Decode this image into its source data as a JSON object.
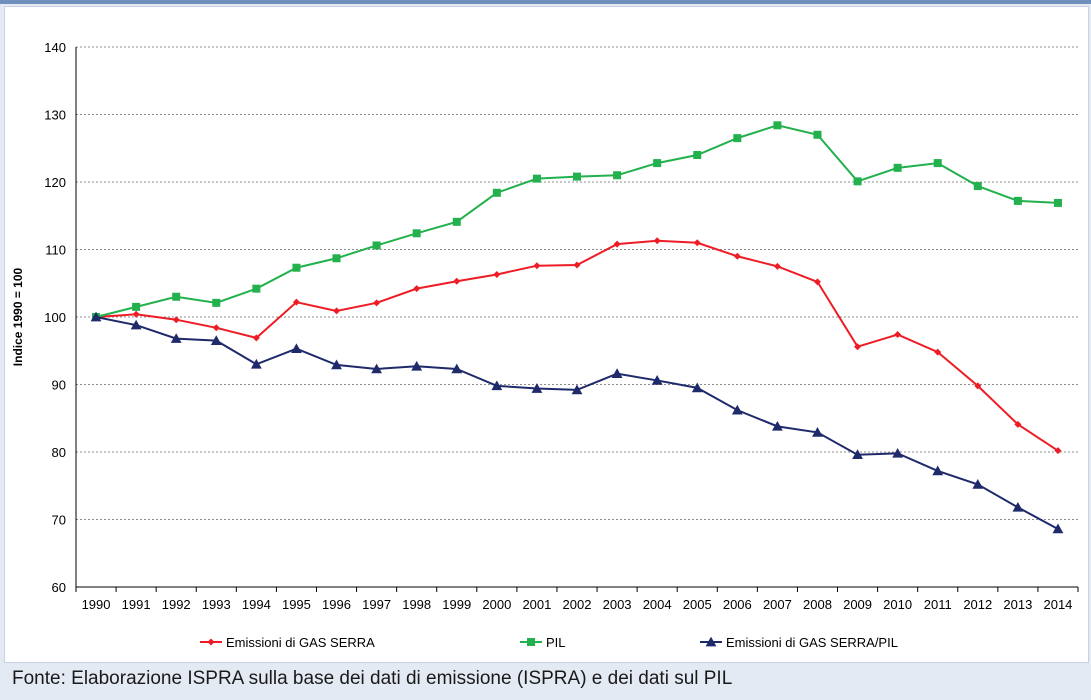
{
  "source_note": "Fonte: Elaborazione ISPRA sulla base dei dati di emissione (ISPRA) e dei dati sul PIL",
  "chart_data": {
    "type": "line",
    "title": "",
    "xlabel": "",
    "ylabel": "Indice 1990 = 100",
    "ylim": [
      60,
      140
    ],
    "yticks": [
      60,
      70,
      80,
      90,
      100,
      110,
      120,
      130,
      140
    ],
    "grid": "horizontal dotted",
    "legend_position": "bottom",
    "categories": [
      "1990",
      "1991",
      "1992",
      "1993",
      "1994",
      "1995",
      "1996",
      "1997",
      "1998",
      "1999",
      "2000",
      "2001",
      "2002",
      "2003",
      "2004",
      "2005",
      "2006",
      "2007",
      "2008",
      "2009",
      "2010",
      "2011",
      "2012",
      "2013",
      "2014"
    ],
    "series": [
      {
        "name": "Emissioni di GAS SERRA",
        "color": "#ee1c25",
        "marker": "diamond",
        "values": [
          100,
          100.4,
          99.6,
          98.4,
          96.9,
          102.2,
          100.9,
          102.1,
          104.2,
          105.3,
          106.3,
          107.6,
          107.7,
          110.8,
          111.3,
          111.0,
          109.0,
          107.5,
          105.2,
          95.6,
          97.4,
          94.8,
          89.8,
          84.1,
          80.2
        ]
      },
      {
        "name": "PIL",
        "color": "#22b14c",
        "marker": "square",
        "values": [
          100,
          101.5,
          103.0,
          102.1,
          104.2,
          107.3,
          108.7,
          110.6,
          112.4,
          114.1,
          118.4,
          120.5,
          120.8,
          121.0,
          122.8,
          124.0,
          126.5,
          128.4,
          127.0,
          120.1,
          122.1,
          122.8,
          119.4,
          117.2,
          116.9
        ]
      },
      {
        "name": "Emissioni di GAS SERRA/PIL",
        "color": "#1f2a6b",
        "marker": "triangle",
        "values": [
          100,
          98.8,
          96.8,
          96.5,
          93.0,
          95.3,
          92.9,
          92.3,
          92.7,
          92.3,
          89.8,
          89.4,
          89.2,
          91.6,
          90.6,
          89.5,
          86.2,
          83.8,
          82.9,
          79.6,
          79.8,
          77.2,
          75.2,
          71.8,
          68.6
        ]
      }
    ]
  }
}
